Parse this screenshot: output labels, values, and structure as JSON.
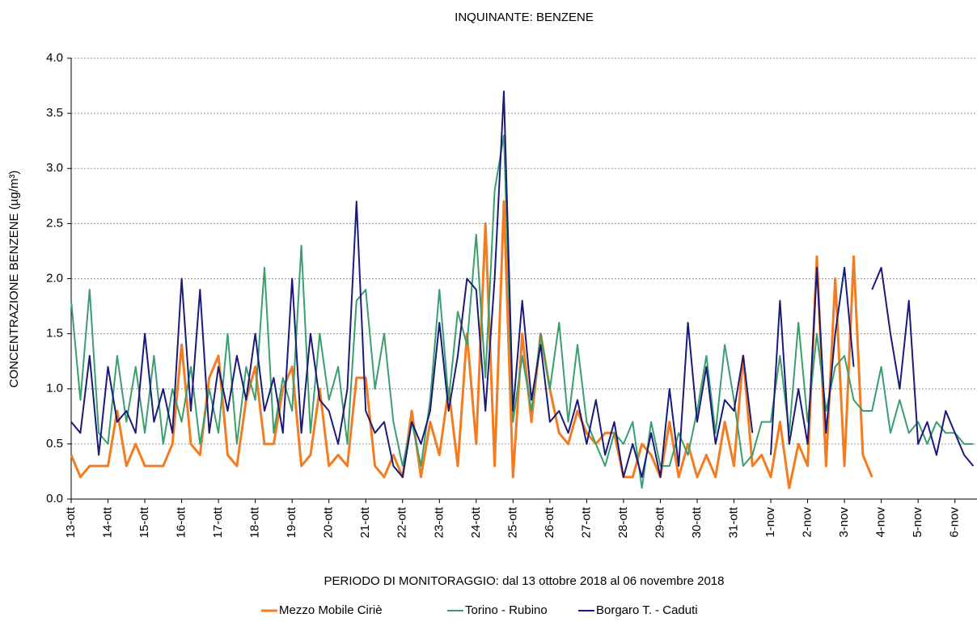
{
  "chart_data": {
    "type": "line",
    "title": "INQUINANTE: BENZENE",
    "x_label": "PERIODO DI MONITORAGGIO: dal 13 ottobre 2018 al 06 novembre 2018",
    "y_label": "CONCENTRAZIONE BENZENE (µg/m³)",
    "x": [
      0,
      0.25,
      0.5,
      0.75,
      1,
      1.25,
      1.5,
      1.75,
      2,
      2.25,
      2.5,
      2.75,
      3,
      3.25,
      3.5,
      3.75,
      4,
      4.25,
      4.5,
      4.75,
      5,
      5.25,
      5.5,
      5.75,
      6,
      6.25,
      6.5,
      6.75,
      7,
      7.25,
      7.5,
      7.75,
      8,
      8.25,
      8.5,
      8.75,
      9,
      9.25,
      9.5,
      9.75,
      10,
      10.25,
      10.5,
      10.75,
      11,
      11.25,
      11.5,
      11.75,
      12,
      12.25,
      12.5,
      12.75,
      13,
      13.25,
      13.5,
      13.75,
      14,
      14.25,
      14.5,
      14.75,
      15,
      15.25,
      15.5,
      15.75,
      16,
      16.25,
      16.5,
      16.75,
      17,
      17.25,
      17.5,
      17.75,
      18,
      18.25,
      18.5,
      18.75,
      19,
      19.25,
      19.5,
      19.75,
      20,
      20.25,
      20.5,
      20.75,
      21,
      21.25,
      21.5,
      21.75,
      22,
      22.25,
      22.5,
      22.75,
      23,
      23.25,
      23.5,
      23.75,
      24,
      24.25,
      24.5
    ],
    "series": [
      {
        "name": "Mezzo Mobile Ciriè",
        "color": "#f47c20",
        "values": [
          0.4,
          0.2,
          0.3,
          0.3,
          0.3,
          0.8,
          0.3,
          0.5,
          0.3,
          0.3,
          0.3,
          0.5,
          1.4,
          0.5,
          0.4,
          1.1,
          1.3,
          0.4,
          0.3,
          0.9,
          1.2,
          0.5,
          0.5,
          1.0,
          1.2,
          0.3,
          0.4,
          1.0,
          0.3,
          0.4,
          0.3,
          1.1,
          1.1,
          0.3,
          0.2,
          0.4,
          0.2,
          0.8,
          0.2,
          0.7,
          0.4,
          1.0,
          0.3,
          1.5,
          0.5,
          2.5,
          0.3,
          2.7,
          0.2,
          1.5,
          0.7,
          1.5,
          1.0,
          0.6,
          0.5,
          0.8,
          0.6,
          0.5,
          0.6,
          0.6,
          0.2,
          0.2,
          0.5,
          0.4,
          0.2,
          0.7,
          0.2,
          0.5,
          0.2,
          0.4,
          0.2,
          0.7,
          0.3,
          1.3,
          0.3,
          0.4,
          0.2,
          0.7,
          0.1,
          0.5,
          0.3,
          2.2,
          0.3,
          2.0,
          0.3,
          2.2,
          0.4,
          0.2,
          null,
          null,
          null,
          null,
          null,
          null,
          null,
          null,
          null,
          null,
          null
        ]
      },
      {
        "name": "Torino - Rubino",
        "color": "#3a9e6e",
        "values": [
          1.8,
          0.9,
          1.9,
          0.6,
          0.5,
          1.3,
          0.7,
          1.2,
          0.6,
          1.3,
          0.5,
          1.0,
          0.7,
          1.2,
          0.5,
          1.0,
          0.6,
          1.5,
          0.5,
          1.2,
          0.9,
          2.1,
          0.6,
          1.1,
          0.8,
          2.3,
          0.6,
          1.5,
          0.9,
          1.2,
          0.5,
          1.8,
          1.9,
          1.0,
          1.5,
          0.7,
          0.3,
          0.7,
          0.3,
          0.9,
          1.9,
          0.9,
          1.7,
          1.4,
          2.4,
          1.1,
          2.8,
          3.3,
          0.7,
          1.3,
          0.8,
          1.5,
          1.0,
          1.6,
          0.7,
          1.4,
          0.7,
          0.5,
          0.3,
          0.6,
          0.5,
          0.7,
          0.1,
          0.7,
          0.3,
          0.3,
          0.6,
          0.4,
          0.8,
          1.3,
          0.6,
          1.4,
          0.9,
          0.3,
          0.4,
          0.7,
          0.7,
          1.3,
          0.6,
          1.6,
          0.7,
          1.5,
          0.8,
          1.2,
          1.3,
          0.9,
          0.8,
          0.8,
          1.2,
          0.6,
          0.9,
          0.6,
          0.7,
          0.5,
          0.7,
          0.6,
          0.6,
          0.5,
          0.5
        ]
      },
      {
        "name": "Borgaro T. - Caduti",
        "color": "#1a1a7a",
        "values": [
          0.7,
          0.6,
          1.3,
          0.4,
          1.2,
          0.7,
          0.8,
          0.6,
          1.5,
          0.7,
          1.0,
          0.6,
          2.0,
          0.8,
          1.9,
          0.6,
          1.2,
          0.8,
          1.3,
          0.9,
          1.5,
          0.8,
          1.1,
          0.6,
          2.0,
          0.6,
          1.5,
          0.9,
          0.8,
          0.5,
          1.0,
          2.7,
          0.8,
          0.6,
          0.7,
          0.3,
          0.2,
          0.7,
          0.5,
          0.8,
          1.6,
          0.8,
          1.3,
          2.0,
          1.9,
          0.8,
          2.0,
          3.7,
          0.8,
          1.8,
          0.9,
          1.4,
          0.7,
          0.8,
          0.6,
          0.9,
          0.5,
          0.9,
          0.4,
          0.7,
          0.2,
          0.5,
          0.2,
          0.6,
          0.2,
          1.0,
          0.3,
          1.6,
          0.7,
          1.2,
          0.5,
          0.9,
          0.8,
          1.3,
          0.6,
          null,
          0.4,
          1.8,
          0.5,
          1.0,
          0.5,
          2.1,
          0.6,
          1.5,
          2.1,
          1.2,
          null,
          1.9,
          2.1,
          1.5,
          1.0,
          1.8,
          0.5,
          0.7,
          0.4,
          0.8,
          0.6,
          0.4,
          0.3
        ]
      }
    ],
    "xlim": [
      0,
      24.6
    ],
    "xticks": [
      {
        "value": 0,
        "label": "13-ott"
      },
      {
        "value": 1,
        "label": "14-ott"
      },
      {
        "value": 2,
        "label": "15-ott"
      },
      {
        "value": 3,
        "label": "16-ott"
      },
      {
        "value": 4,
        "label": "17-ott"
      },
      {
        "value": 5,
        "label": "18-ott"
      },
      {
        "value": 6,
        "label": "19-ott"
      },
      {
        "value": 7,
        "label": "20-ott"
      },
      {
        "value": 8,
        "label": "21-ott"
      },
      {
        "value": 9,
        "label": "22-ott"
      },
      {
        "value": 10,
        "label": "23-ott"
      },
      {
        "value": 11,
        "label": "24-ott"
      },
      {
        "value": 12,
        "label": "25-ott"
      },
      {
        "value": 13,
        "label": "26-ott"
      },
      {
        "value": 14,
        "label": "27-ott"
      },
      {
        "value": 15,
        "label": "28-ott"
      },
      {
        "value": 16,
        "label": "29-ott"
      },
      {
        "value": 17,
        "label": "30-ott"
      },
      {
        "value": 18,
        "label": "31-ott"
      },
      {
        "value": 19,
        "label": "1-nov"
      },
      {
        "value": 20,
        "label": "2-nov"
      },
      {
        "value": 21,
        "label": "3-nov"
      },
      {
        "value": 22,
        "label": "4-nov"
      },
      {
        "value": 23,
        "label": "5-nov"
      },
      {
        "value": 24,
        "label": "6-nov"
      }
    ],
    "ylim": [
      0,
      4
    ],
    "yticks": [
      {
        "value": 0,
        "label": "0.0"
      },
      {
        "value": 0.5,
        "label": "0.5"
      },
      {
        "value": 1,
        "label": "1.0"
      },
      {
        "value": 1.5,
        "label": "1.5"
      },
      {
        "value": 2,
        "label": "2.0"
      },
      {
        "value": 2.5,
        "label": "2.5"
      },
      {
        "value": 3,
        "label": "3.0"
      },
      {
        "value": 3.5,
        "label": "3.5"
      },
      {
        "value": 4,
        "label": "4.0"
      }
    ],
    "grid": true,
    "legend": "bottom"
  }
}
